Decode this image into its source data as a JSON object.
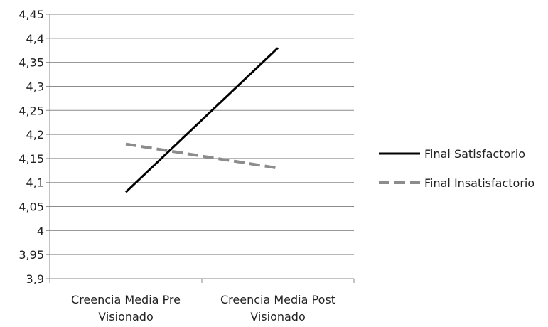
{
  "chart_data": {
    "type": "line",
    "categories": [
      [
        "Creencia Media Pre",
        "Visionado"
      ],
      [
        "Creencia Media Post",
        "Visionado"
      ]
    ],
    "series": [
      {
        "name": "Final Satisfactorio",
        "values": [
          4.08,
          4.38
        ],
        "color": "#000000",
        "style": "solid"
      },
      {
        "name": "Final Insatisfactorio",
        "values": [
          4.18,
          4.13
        ],
        "color": "#8c8c8c",
        "style": "dashed"
      }
    ],
    "ylim": [
      3.9,
      4.45
    ],
    "yticks": [
      "3,9",
      "3,95",
      "4",
      "4,05",
      "4,1",
      "4,15",
      "4,2",
      "4,25",
      "4,3",
      "4,35",
      "4,4",
      "4,45"
    ],
    "grid": true,
    "legend": "right"
  }
}
